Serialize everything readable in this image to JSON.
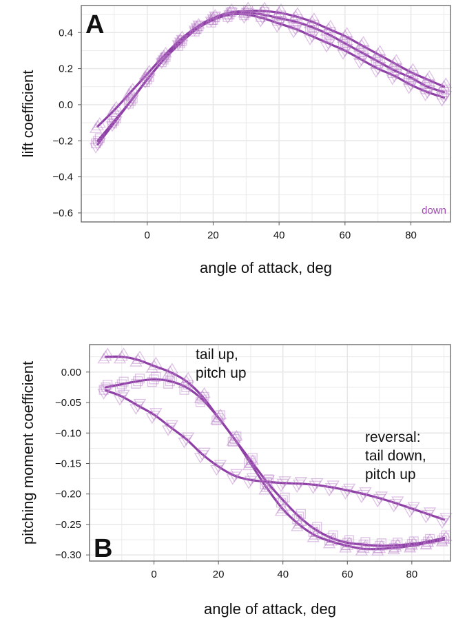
{
  "colors": {
    "series": "#8e3fa6",
    "marker": "#b57ac6",
    "grid": "#e6e6e6",
    "panel_border": "#777777",
    "legend_text": "#a24bb5"
  },
  "chart_data": [
    {
      "type": "scatter",
      "panel": "A",
      "xlabel": "angle of attack, deg",
      "ylabel": "lift coefficient",
      "xlim": [
        -20,
        92
      ],
      "ylim": [
        -0.65,
        0.55
      ],
      "xticks": [
        0,
        20,
        40,
        60,
        80
      ],
      "yticks": [
        -0.6,
        -0.4,
        -0.2,
        0.0,
        0.2,
        0.4
      ],
      "xtick_labels": [
        "0",
        "20",
        "40",
        "60",
        "80"
      ],
      "ytick_labels": [
        "−0.6",
        "−0.4",
        "−0.2",
        "0.0",
        "0.2",
        "0.4"
      ],
      "legend_note": "down",
      "series": [
        {
          "name": "triangle-up",
          "marker": "triangle-up",
          "x": [
            -15,
            -10,
            -5,
            0,
            5,
            10,
            15,
            20,
            25,
            30,
            35,
            40,
            45,
            50,
            55,
            60,
            65,
            70,
            75,
            80,
            85,
            90
          ],
          "y": [
            -0.12,
            -0.03,
            0.07,
            0.17,
            0.27,
            0.36,
            0.43,
            0.48,
            0.51,
            0.52,
            0.52,
            0.51,
            0.49,
            0.46,
            0.42,
            0.38,
            0.33,
            0.28,
            0.23,
            0.18,
            0.14,
            0.1
          ]
        },
        {
          "name": "square",
          "marker": "square",
          "x": [
            -15,
            -10,
            -5,
            0,
            5,
            10,
            15,
            20,
            25,
            30,
            35,
            40,
            45,
            50,
            55,
            60,
            65,
            70,
            75,
            80,
            85,
            90
          ],
          "y": [
            -0.2,
            -0.09,
            0.02,
            0.14,
            0.25,
            0.34,
            0.42,
            0.47,
            0.5,
            0.51,
            0.5,
            0.48,
            0.46,
            0.43,
            0.39,
            0.34,
            0.29,
            0.24,
            0.19,
            0.15,
            0.1,
            0.07
          ]
        },
        {
          "name": "triangle-down",
          "marker": "triangle-down",
          "x": [
            -15,
            -10,
            -5,
            0,
            5,
            10,
            15,
            20,
            25,
            30,
            35,
            40,
            45,
            50,
            55,
            60,
            65,
            70,
            75,
            80,
            85,
            90
          ],
          "y": [
            -0.22,
            -0.1,
            0.02,
            0.14,
            0.25,
            0.35,
            0.43,
            0.48,
            0.5,
            0.5,
            0.48,
            0.45,
            0.42,
            0.38,
            0.34,
            0.3,
            0.25,
            0.2,
            0.16,
            0.11,
            0.07,
            0.04
          ]
        }
      ]
    },
    {
      "type": "scatter",
      "panel": "B",
      "xlabel": "angle of attack, deg",
      "ylabel": "pitching moment coefficient",
      "xlim": [
        -20,
        92
      ],
      "ylim": [
        -0.31,
        0.045
      ],
      "xticks": [
        0,
        20,
        40,
        60,
        80
      ],
      "yticks": [
        -0.3,
        -0.25,
        -0.2,
        -0.15,
        -0.1,
        -0.05,
        0.0
      ],
      "xtick_labels": [
        "0",
        "20",
        "40",
        "60",
        "80"
      ],
      "ytick_labels": [
        "−0.30",
        "−0.25",
        "−0.20",
        "−0.15",
        "−0.10",
        "−0.05",
        "0.00"
      ],
      "annotations": [
        {
          "id": "tail-up",
          "lines": [
            "tail up,",
            "pitch up"
          ]
        },
        {
          "id": "reversal",
          "lines": [
            "reversal:",
            "tail down,",
            "pitch up"
          ]
        }
      ],
      "series": [
        {
          "name": "triangle-up",
          "marker": "triangle-up",
          "x": [
            -15,
            -10,
            -5,
            0,
            5,
            10,
            15,
            20,
            25,
            30,
            35,
            40,
            45,
            50,
            55,
            60,
            65,
            70,
            75,
            80,
            85,
            90
          ],
          "y": [
            0.025,
            0.025,
            0.02,
            0.01,
            0.0,
            -0.015,
            -0.04,
            -0.075,
            -0.11,
            -0.15,
            -0.19,
            -0.225,
            -0.25,
            -0.268,
            -0.278,
            -0.285,
            -0.29,
            -0.29,
            -0.288,
            -0.285,
            -0.28,
            -0.275
          ]
        },
        {
          "name": "square",
          "marker": "square",
          "x": [
            -15,
            -10,
            -5,
            0,
            5,
            10,
            15,
            20,
            25,
            30,
            35,
            40,
            45,
            50,
            55,
            60,
            65,
            70,
            75,
            80,
            85,
            90
          ],
          "y": [
            -0.025,
            -0.02,
            -0.015,
            -0.012,
            -0.015,
            -0.025,
            -0.045,
            -0.075,
            -0.11,
            -0.145,
            -0.18,
            -0.21,
            -0.237,
            -0.258,
            -0.272,
            -0.28,
            -0.283,
            -0.285,
            -0.284,
            -0.282,
            -0.278,
            -0.272
          ]
        },
        {
          "name": "triangle-down",
          "marker": "triangle-down",
          "x": [
            -15,
            -10,
            -5,
            0,
            5,
            10,
            15,
            20,
            25,
            30,
            35,
            40,
            45,
            50,
            55,
            60,
            65,
            70,
            75,
            80,
            85,
            90
          ],
          "y": [
            -0.03,
            -0.04,
            -0.055,
            -0.07,
            -0.09,
            -0.11,
            -0.135,
            -0.155,
            -0.17,
            -0.177,
            -0.18,
            -0.182,
            -0.183,
            -0.185,
            -0.189,
            -0.194,
            -0.2,
            -0.207,
            -0.215,
            -0.224,
            -0.233,
            -0.242
          ]
        }
      ]
    }
  ]
}
